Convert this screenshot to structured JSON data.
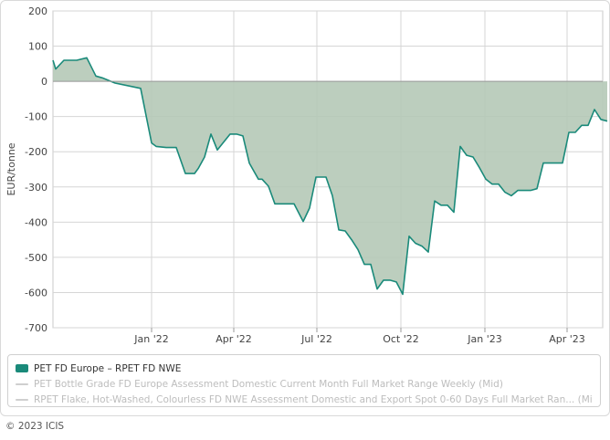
{
  "chart_data": {
    "type": "area",
    "ylabel": "EUR/tonne",
    "ylim": [
      -700,
      200
    ],
    "y_ticks": [
      200,
      100,
      0,
      -100,
      -200,
      -300,
      -400,
      -500,
      -600,
      -700
    ],
    "x_range": [
      "2021-09-15",
      "2023-05-10"
    ],
    "x_ticks": [
      {
        "date": "2022-01-01",
        "label": "Jan '22"
      },
      {
        "date": "2022-04-01",
        "label": "Apr '22"
      },
      {
        "date": "2022-07-01",
        "label": "Jul '22"
      },
      {
        "date": "2022-10-01",
        "label": "Oct '22"
      },
      {
        "date": "2023-01-01",
        "label": "Jan '23"
      },
      {
        "date": "2023-04-01",
        "label": "Apr '23"
      }
    ],
    "grid": true,
    "series": [
      {
        "name": "PET FD Europe – RPET FD NWE",
        "color": "#1a8a7a",
        "fill": "#b5c9b7",
        "points": [
          [
            "2021-09-15",
            60
          ],
          [
            "2021-09-18",
            35
          ],
          [
            "2021-09-27",
            60
          ],
          [
            "2021-10-11",
            60
          ],
          [
            "2021-10-22",
            67
          ],
          [
            "2021-11-01",
            15
          ],
          [
            "2021-11-08",
            10
          ],
          [
            "2021-11-22",
            -5
          ],
          [
            "2021-12-20",
            -20
          ],
          [
            "2022-01-01",
            -175
          ],
          [
            "2022-01-06",
            -185
          ],
          [
            "2022-01-17",
            -188
          ],
          [
            "2022-01-28",
            -188
          ],
          [
            "2022-02-07",
            -262
          ],
          [
            "2022-02-17",
            -262
          ],
          [
            "2022-02-21",
            -248
          ],
          [
            "2022-02-28",
            -215
          ],
          [
            "2022-03-07",
            -150
          ],
          [
            "2022-03-14",
            -195
          ],
          [
            "2022-03-28",
            -150
          ],
          [
            "2022-04-04",
            -150
          ],
          [
            "2022-04-11",
            -155
          ],
          [
            "2022-04-18",
            -232
          ],
          [
            "2022-04-28",
            -278
          ],
          [
            "2022-05-02",
            -278
          ],
          [
            "2022-05-09",
            -298
          ],
          [
            "2022-05-16",
            -348
          ],
          [
            "2022-05-26",
            -348
          ],
          [
            "2022-06-06",
            -348
          ],
          [
            "2022-06-16",
            -398
          ],
          [
            "2022-06-23",
            -360
          ],
          [
            "2022-06-30",
            -272
          ],
          [
            "2022-07-11",
            -272
          ],
          [
            "2022-07-18",
            -325
          ],
          [
            "2022-07-25",
            -422
          ],
          [
            "2022-08-01",
            -425
          ],
          [
            "2022-08-08",
            -450
          ],
          [
            "2022-08-15",
            -478
          ],
          [
            "2022-08-22",
            -520
          ],
          [
            "2022-08-29",
            -520
          ],
          [
            "2022-09-05",
            -590
          ],
          [
            "2022-09-12",
            -565
          ],
          [
            "2022-09-19",
            -565
          ],
          [
            "2022-09-26",
            -570
          ],
          [
            "2022-10-03",
            -605
          ],
          [
            "2022-10-10",
            -440
          ],
          [
            "2022-10-17",
            -460
          ],
          [
            "2022-10-24",
            -468
          ],
          [
            "2022-10-31",
            -485
          ],
          [
            "2022-11-07",
            -340
          ],
          [
            "2022-11-14",
            -352
          ],
          [
            "2022-11-21",
            -352
          ],
          [
            "2022-11-28",
            -372
          ],
          [
            "2022-12-05",
            -185
          ],
          [
            "2022-12-12",
            -210
          ],
          [
            "2022-12-19",
            -215
          ],
          [
            "2022-12-26",
            -245
          ],
          [
            "2023-01-02",
            -278
          ],
          [
            "2023-01-09",
            -292
          ],
          [
            "2023-01-16",
            -292
          ],
          [
            "2023-01-23",
            -315
          ],
          [
            "2023-01-30",
            -325
          ],
          [
            "2023-02-06",
            -310
          ],
          [
            "2023-02-13",
            -310
          ],
          [
            "2023-02-20",
            -310
          ],
          [
            "2023-02-27",
            -305
          ],
          [
            "2023-03-06",
            -232
          ],
          [
            "2023-03-13",
            -232
          ],
          [
            "2023-03-20",
            -232
          ],
          [
            "2023-03-27",
            -232
          ],
          [
            "2023-04-03",
            -145
          ],
          [
            "2023-04-10",
            -145
          ],
          [
            "2023-04-17",
            -125
          ],
          [
            "2023-04-24",
            -125
          ],
          [
            "2023-05-01",
            -80
          ],
          [
            "2023-05-08",
            -108
          ],
          [
            "2023-05-15",
            -113
          ]
        ]
      }
    ],
    "legend": {
      "placement": "bottom",
      "items": [
        {
          "label": "PET FD Europe – RPET FD NWE",
          "active": true,
          "color": "#1a8a7a"
        },
        {
          "label": "PET Bottle Grade FD Europe Assessment Domestic Current Month Full Market Range Weekly (Mid)",
          "active": false,
          "color": "#cfcfcf"
        },
        {
          "label": "RPET Flake, Hot-Washed, Colourless FD NWE Assessment Domestic and Export Spot 0-60 Days Full Market Ran... (Mid)",
          "active": false,
          "color": "#cfcfcf"
        }
      ]
    }
  },
  "footer": {
    "copyright": "© 2023 ICIS"
  }
}
